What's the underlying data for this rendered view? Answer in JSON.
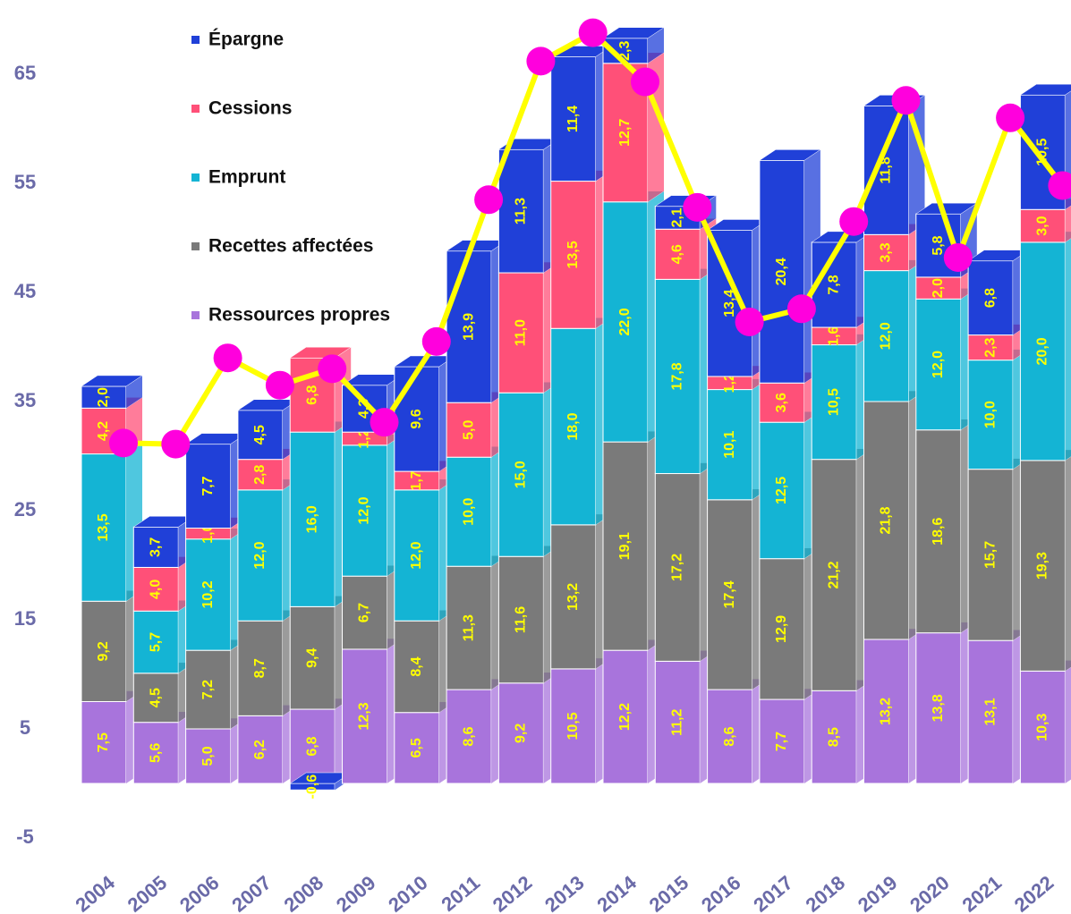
{
  "chart_data": {
    "type": "bar",
    "categories": [
      "2004",
      "2005",
      "2006",
      "2007",
      "2008",
      "2009",
      "2010",
      "2011",
      "2012",
      "2013",
      "2014",
      "2015",
      "2016",
      "2017",
      "2018",
      "2019",
      "2020",
      "2021",
      "2022"
    ],
    "series": [
      {
        "name": "Ressources propres",
        "color": "#a874dc",
        "values": [
          7.5,
          5.6,
          5.0,
          6.2,
          6.8,
          12.3,
          6.5,
          8.6,
          9.2,
          10.5,
          12.2,
          11.2,
          8.6,
          7.7,
          8.5,
          13.2,
          13.8,
          13.1,
          10.3
        ],
        "value_labels": [
          "7,5",
          "5,6",
          "5,0",
          "6,2",
          "6,8",
          "12,3",
          "6,5",
          "8,6",
          "9,2",
          "10,5",
          "12,2",
          "11,2",
          "8,6",
          "7,7",
          "8,5",
          "13,2",
          "13,8",
          "13,1",
          "10,3"
        ]
      },
      {
        "name": "Recettes affectées",
        "color": "#7a7a7a",
        "values": [
          9.2,
          4.5,
          7.2,
          8.7,
          9.4,
          6.7,
          8.4,
          11.3,
          11.6,
          13.2,
          19.1,
          17.2,
          17.4,
          12.9,
          21.2,
          21.8,
          18.6,
          15.7,
          19.3
        ],
        "value_labels": [
          "9,2",
          "4,5",
          "7,2",
          "8,7",
          "9,4",
          "6,7",
          "8,4",
          "11,3",
          "11,6",
          "13,2",
          "19,1",
          "17,2",
          "17,4",
          "12,9",
          "21,2",
          "21,8",
          "18,6",
          "15,7",
          "19,3"
        ]
      },
      {
        "name": "Emprunt",
        "color": "#14b4d4",
        "values": [
          13.5,
          5.7,
          10.2,
          12.0,
          16.0,
          12.0,
          12.0,
          10.0,
          15.0,
          18.0,
          22.0,
          17.8,
          10.1,
          12.5,
          10.5,
          12.0,
          12.0,
          10.0,
          20.0
        ],
        "value_labels": [
          "13,5",
          "5,7",
          "10,2",
          "12,0",
          "16,0",
          "12,0",
          "12,0",
          "10,0",
          "15,0",
          "18,0",
          "22,0",
          "17,8",
          "10,1",
          "12,5",
          "10,5",
          "12,0",
          "12,0",
          "10,0",
          "20,0"
        ]
      },
      {
        "name": "Cessions",
        "color": "#ff5078",
        "values": [
          4.2,
          4.0,
          1.0,
          2.8,
          6.8,
          1.2,
          1.7,
          5.0,
          11.0,
          13.5,
          12.7,
          4.6,
          1.2,
          3.6,
          1.6,
          3.3,
          2.0,
          2.3,
          3.0
        ],
        "value_labels": [
          "4,2",
          "4,0",
          "1,0",
          "2,8",
          "6,8",
          "1,2",
          "1,7",
          "5,0",
          "11,0",
          "13,5",
          "12,7",
          "4,6",
          "1,2",
          "3,6",
          "1,6",
          "3,3",
          "2,0",
          "2,3",
          "3,0"
        ]
      },
      {
        "name": "Épargne",
        "color": "#2040d8",
        "values": [
          2.0,
          3.7,
          7.7,
          4.5,
          -0.6,
          4.3,
          9.6,
          13.9,
          11.3,
          11.4,
          2.3,
          2.1,
          13.4,
          20.4,
          7.8,
          11.8,
          5.8,
          6.8,
          10.5
        ],
        "value_labels": [
          "2,0",
          "3,7",
          "7,7",
          "4,5",
          "-0,6",
          "4,3",
          "9,6",
          "13,9",
          "11,3",
          "11,4",
          "2,3",
          "2,1",
          "13,4",
          "20,4",
          "7,8",
          "11,8",
          "5,8",
          "6,8",
          "10,5"
        ]
      },
      {
        "type": "line",
        "color": "#ffff00",
        "marker_color": "#ff00dd",
        "values": [
          31.2,
          31.1,
          39.0,
          36.5,
          38.0,
          33.1,
          40.5,
          53.5,
          66.2,
          68.8,
          64.3,
          52.8,
          42.3,
          43.5,
          51.5,
          62.6,
          48.2,
          61.0,
          54.8
        ]
      }
    ],
    "ylim": [
      -5,
      70
    ],
    "yticks": [
      -5,
      5,
      15,
      25,
      35,
      45,
      55,
      65
    ]
  }
}
